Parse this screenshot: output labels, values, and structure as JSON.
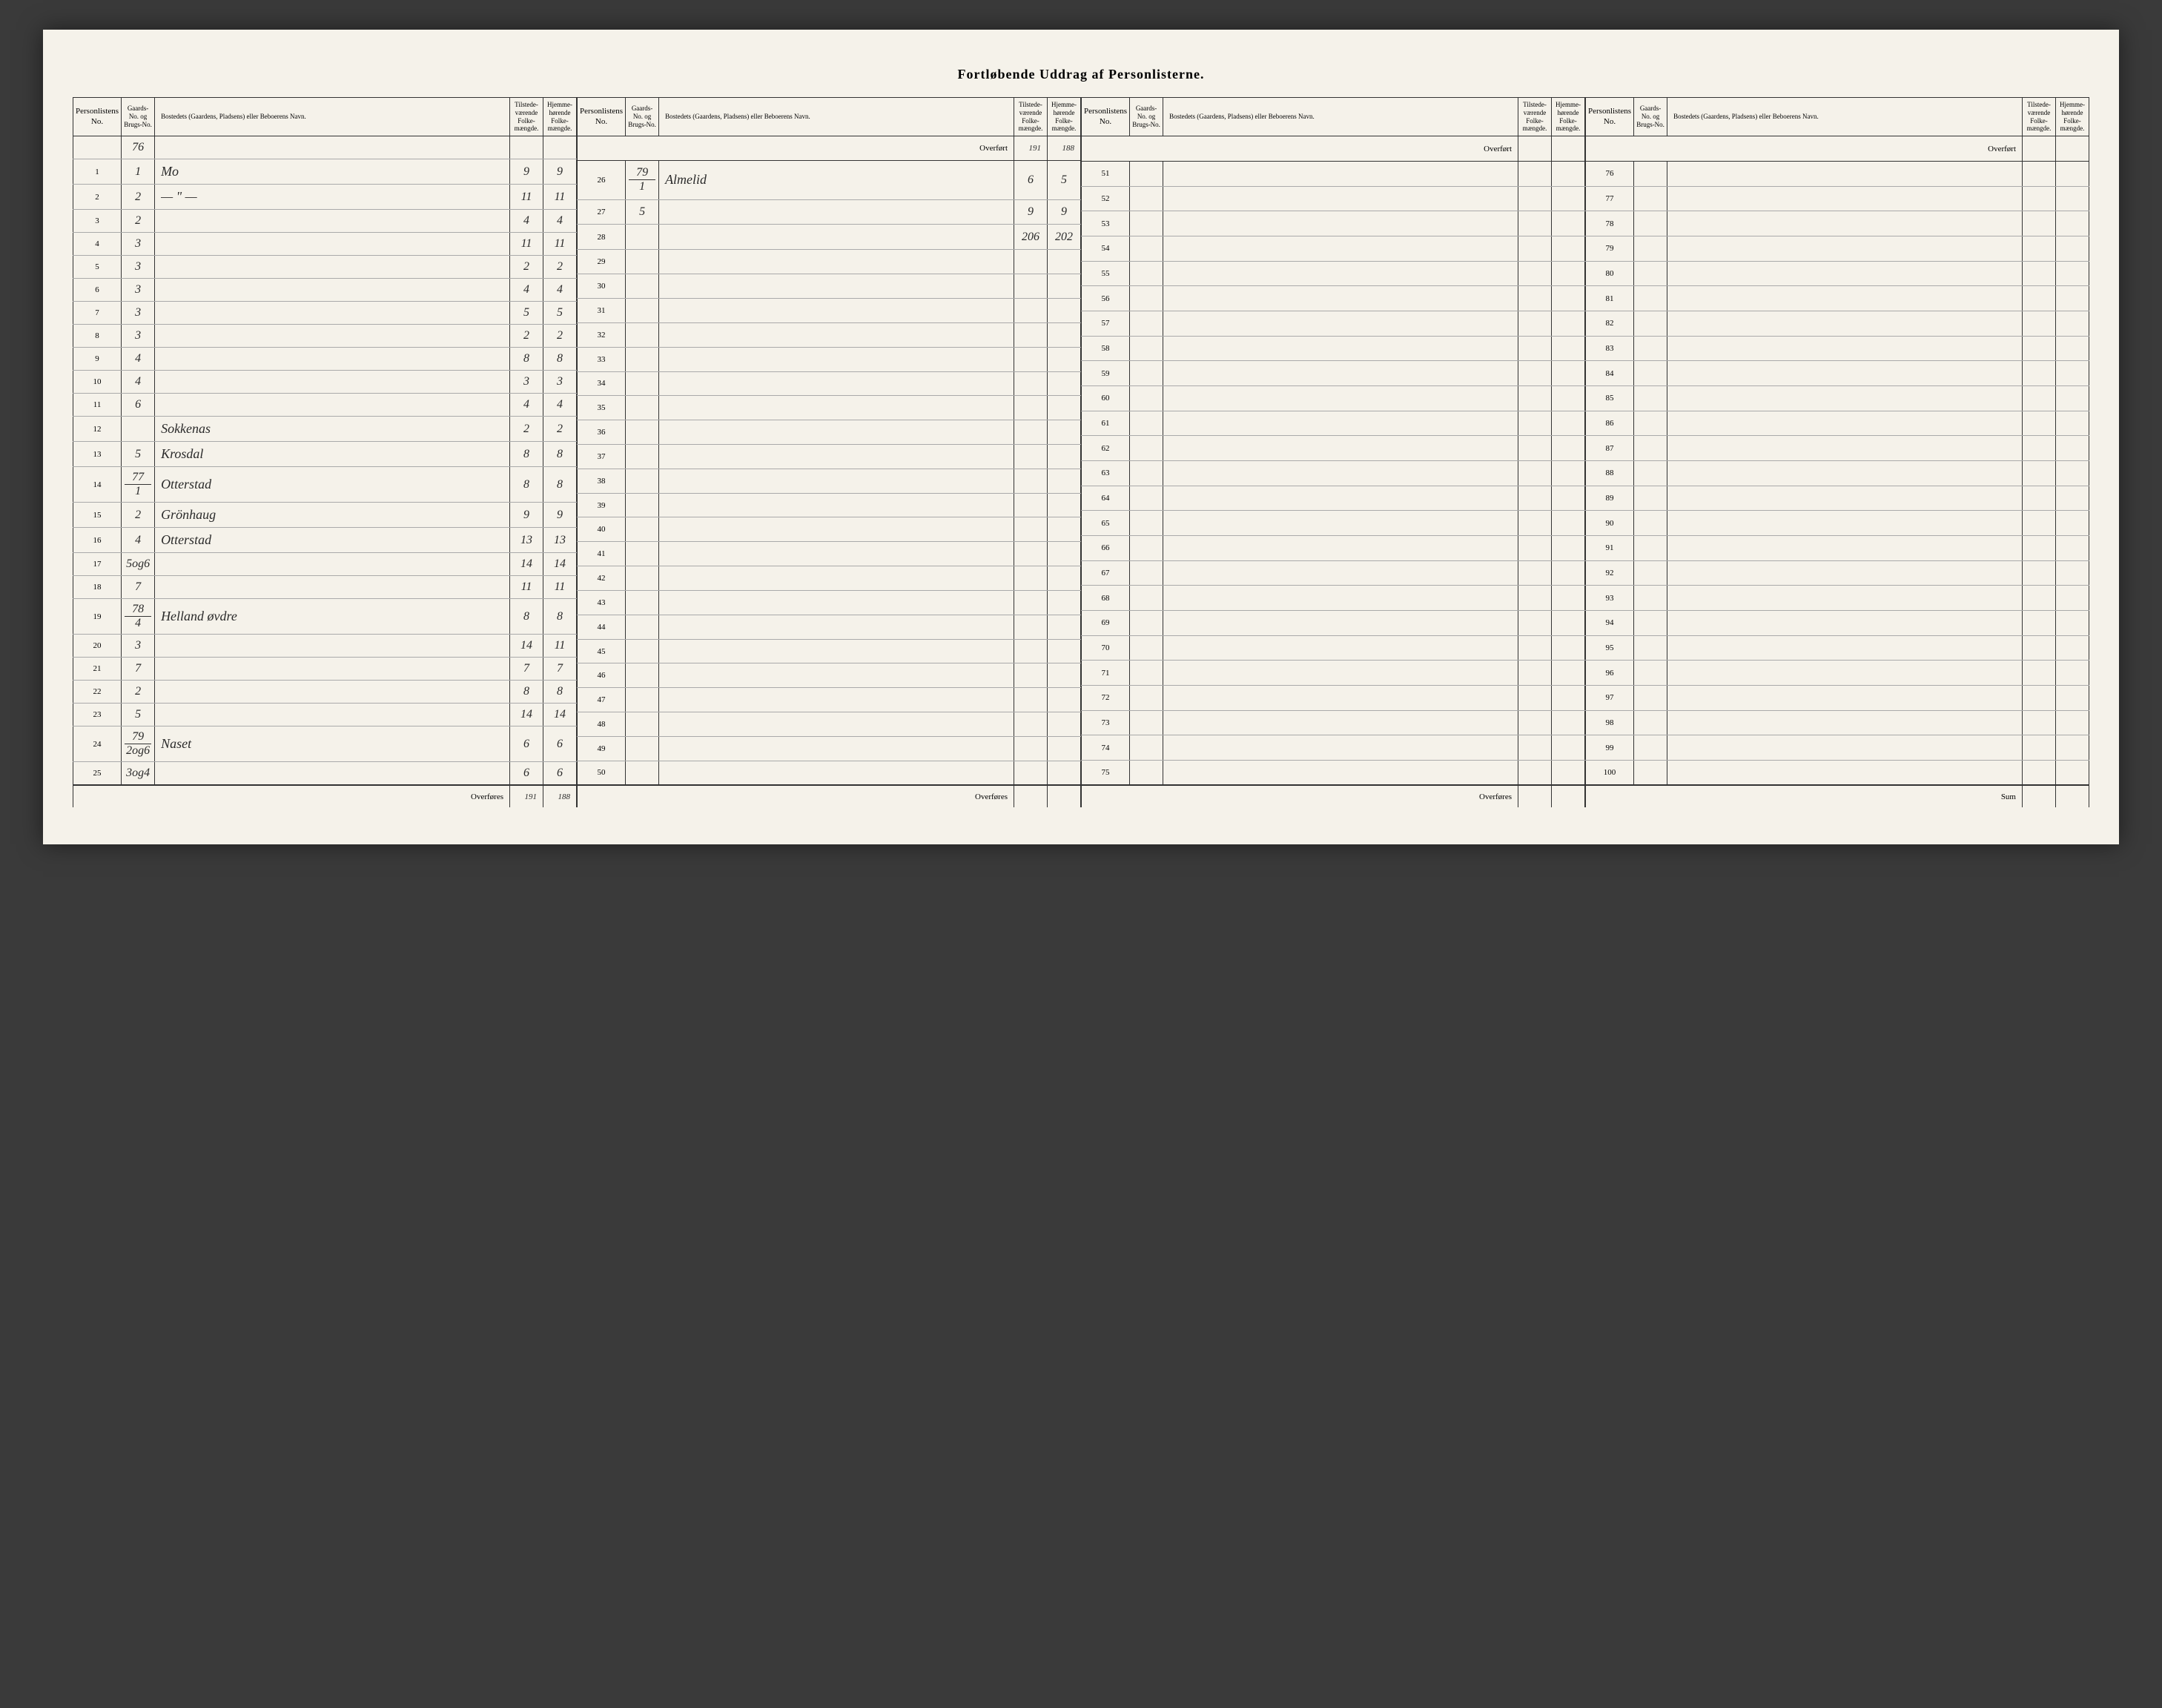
{
  "title": "Fortløbende Uddrag af Personlisterne.",
  "headers": {
    "personlist": "Personlistens No.",
    "gaard": "Gaards-No. og Brugs-No.",
    "bosted": "Bostedets (Gaardens, Pladsens) eller Beboerens Navn.",
    "tilstede": "Tilstede-værende Folke-mængde.",
    "hjemme": "Hjemme-hørende Folke-mængde."
  },
  "labels": {
    "overfort": "Overført",
    "overfores": "Overføres",
    "sum": "Sum"
  },
  "block1": {
    "gaard_header": "76",
    "rows": [
      {
        "n": "1",
        "g": "1",
        "name": "Mo",
        "t": "9",
        "h": "9"
      },
      {
        "n": "2",
        "g": "2",
        "name": "— \" —",
        "t": "11",
        "h": "11"
      },
      {
        "n": "3",
        "g": "2",
        "name": "",
        "t": "4",
        "h": "4"
      },
      {
        "n": "4",
        "g": "3",
        "name": "",
        "t": "11",
        "h": "11"
      },
      {
        "n": "5",
        "g": "3",
        "name": "",
        "t": "2",
        "h": "2"
      },
      {
        "n": "6",
        "g": "3",
        "name": "",
        "t": "4",
        "h": "4"
      },
      {
        "n": "7",
        "g": "3",
        "name": "",
        "t": "5",
        "h": "5"
      },
      {
        "n": "8",
        "g": "3",
        "name": "",
        "t": "2",
        "h": "2"
      },
      {
        "n": "9",
        "g": "4",
        "name": "",
        "t": "8",
        "h": "8"
      },
      {
        "n": "10",
        "g": "4",
        "name": "",
        "t": "3",
        "h": "3"
      },
      {
        "n": "11",
        "g": "6",
        "name": "",
        "t": "4",
        "h": "4"
      },
      {
        "n": "12",
        "g": "",
        "name": "Sokkenas",
        "t": "2",
        "h": "2"
      },
      {
        "n": "13",
        "g": "5",
        "name": "Krosdal",
        "t": "8",
        "h": "8"
      },
      {
        "n": "14",
        "g": "77/1",
        "name": "Otterstad",
        "t": "8",
        "h": "8"
      },
      {
        "n": "15",
        "g": "2",
        "name": "Grönhaug",
        "t": "9",
        "h": "9"
      },
      {
        "n": "16",
        "g": "4",
        "name": "Otterstad",
        "t": "13",
        "h": "13"
      },
      {
        "n": "17",
        "g": "5og6",
        "name": "",
        "t": "14",
        "h": "14"
      },
      {
        "n": "18",
        "g": "7",
        "name": "",
        "t": "11",
        "h": "11"
      },
      {
        "n": "19",
        "g": "78/4",
        "name": "Helland øvdre",
        "t": "8",
        "h": "8"
      },
      {
        "n": "20",
        "g": "3",
        "name": "",
        "t": "14",
        "h": "11"
      },
      {
        "n": "21",
        "g": "7",
        "name": "",
        "t": "7",
        "h": "7"
      },
      {
        "n": "22",
        "g": "2",
        "name": "",
        "t": "8",
        "h": "8"
      },
      {
        "n": "23",
        "g": "5",
        "name": "",
        "t": "14",
        "h": "14"
      },
      {
        "n": "24",
        "g": "79/2og6",
        "name": "Naset",
        "t": "6",
        "h": "6"
      },
      {
        "n": "25",
        "g": "3og4",
        "name": "",
        "t": "6",
        "h": "6"
      }
    ],
    "overfores": {
      "t": "191",
      "h": "188"
    }
  },
  "block2": {
    "overfort": {
      "t": "191",
      "h": "188"
    },
    "rows": [
      {
        "n": "26",
        "g": "79/1",
        "name": "Almelid",
        "t": "6",
        "h": "5"
      },
      {
        "n": "27",
        "g": "5",
        "name": "",
        "t": "9",
        "h": "9"
      },
      {
        "n": "28",
        "g": "",
        "name": "",
        "t": "206",
        "h": "202"
      },
      {
        "n": "29",
        "g": "",
        "name": "",
        "t": "",
        "h": ""
      },
      {
        "n": "30",
        "g": "",
        "name": "",
        "t": "",
        "h": ""
      },
      {
        "n": "31",
        "g": "",
        "name": "",
        "t": "",
        "h": ""
      },
      {
        "n": "32",
        "g": "",
        "name": "",
        "t": "",
        "h": ""
      },
      {
        "n": "33",
        "g": "",
        "name": "",
        "t": "",
        "h": ""
      },
      {
        "n": "34",
        "g": "",
        "name": "",
        "t": "",
        "h": ""
      },
      {
        "n": "35",
        "g": "",
        "name": "",
        "t": "",
        "h": ""
      },
      {
        "n": "36",
        "g": "",
        "name": "",
        "t": "",
        "h": ""
      },
      {
        "n": "37",
        "g": "",
        "name": "",
        "t": "",
        "h": ""
      },
      {
        "n": "38",
        "g": "",
        "name": "",
        "t": "",
        "h": ""
      },
      {
        "n": "39",
        "g": "",
        "name": "",
        "t": "",
        "h": ""
      },
      {
        "n": "40",
        "g": "",
        "name": "",
        "t": "",
        "h": ""
      },
      {
        "n": "41",
        "g": "",
        "name": "",
        "t": "",
        "h": ""
      },
      {
        "n": "42",
        "g": "",
        "name": "",
        "t": "",
        "h": ""
      },
      {
        "n": "43",
        "g": "",
        "name": "",
        "t": "",
        "h": ""
      },
      {
        "n": "44",
        "g": "",
        "name": "",
        "t": "",
        "h": ""
      },
      {
        "n": "45",
        "g": "",
        "name": "",
        "t": "",
        "h": ""
      },
      {
        "n": "46",
        "g": "",
        "name": "",
        "t": "",
        "h": ""
      },
      {
        "n": "47",
        "g": "",
        "name": "",
        "t": "",
        "h": ""
      },
      {
        "n": "48",
        "g": "",
        "name": "",
        "t": "",
        "h": ""
      },
      {
        "n": "49",
        "g": "",
        "name": "",
        "t": "",
        "h": ""
      },
      {
        "n": "50",
        "g": "",
        "name": "",
        "t": "",
        "h": ""
      }
    ]
  },
  "block3": {
    "rows": [
      {
        "n": "51"
      },
      {
        "n": "52"
      },
      {
        "n": "53"
      },
      {
        "n": "54"
      },
      {
        "n": "55"
      },
      {
        "n": "56"
      },
      {
        "n": "57"
      },
      {
        "n": "58"
      },
      {
        "n": "59"
      },
      {
        "n": "60"
      },
      {
        "n": "61"
      },
      {
        "n": "62"
      },
      {
        "n": "63"
      },
      {
        "n": "64"
      },
      {
        "n": "65"
      },
      {
        "n": "66"
      },
      {
        "n": "67"
      },
      {
        "n": "68"
      },
      {
        "n": "69"
      },
      {
        "n": "70"
      },
      {
        "n": "71"
      },
      {
        "n": "72"
      },
      {
        "n": "73"
      },
      {
        "n": "74"
      },
      {
        "n": "75"
      }
    ]
  },
  "block4": {
    "rows": [
      {
        "n": "76"
      },
      {
        "n": "77"
      },
      {
        "n": "78"
      },
      {
        "n": "79"
      },
      {
        "n": "80"
      },
      {
        "n": "81"
      },
      {
        "n": "82"
      },
      {
        "n": "83"
      },
      {
        "n": "84"
      },
      {
        "n": "85"
      },
      {
        "n": "86"
      },
      {
        "n": "87"
      },
      {
        "n": "88"
      },
      {
        "n": "89"
      },
      {
        "n": "90"
      },
      {
        "n": "91"
      },
      {
        "n": "92"
      },
      {
        "n": "93"
      },
      {
        "n": "94"
      },
      {
        "n": "95"
      },
      {
        "n": "96"
      },
      {
        "n": "97"
      },
      {
        "n": "98"
      },
      {
        "n": "99"
      },
      {
        "n": "100"
      }
    ]
  }
}
